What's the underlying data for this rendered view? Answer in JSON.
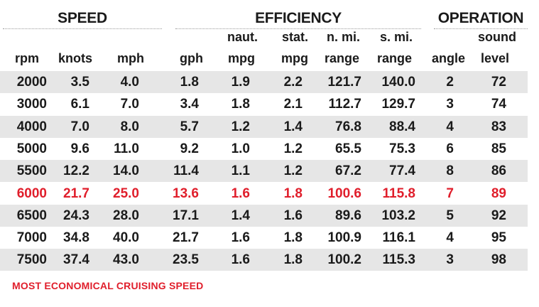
{
  "groups": {
    "speed": "SPEED",
    "efficiency": "EFFICIENCY",
    "operation": "OPERATION"
  },
  "headers": {
    "rpm": "rpm",
    "knots": "knots",
    "mph": "mph",
    "gph": "gph",
    "naut_mpg_top": "naut.",
    "naut_mpg_bottom": "mpg",
    "stat_mpg_top": "stat.",
    "stat_mpg_bottom": "mpg",
    "nmi_range_top": "n. mi.",
    "nmi_range_bottom": "range",
    "smi_range_top": "s. mi.",
    "smi_range_bottom": "range",
    "angle": "angle",
    "sound_top": "sound",
    "sound_bottom": "level"
  },
  "rows": [
    {
      "rpm": "2000",
      "knots": "3.5",
      "mph": "4.0",
      "gph": "1.8",
      "naut_mpg": "1.9",
      "stat_mpg": "2.2",
      "nmi_range": "121.7",
      "smi_range": "140.0",
      "angle": "2",
      "sound": "72"
    },
    {
      "rpm": "3000",
      "knots": "6.1",
      "mph": "7.0",
      "gph": "3.4",
      "naut_mpg": "1.8",
      "stat_mpg": "2.1",
      "nmi_range": "112.7",
      "smi_range": "129.7",
      "angle": "3",
      "sound": "74"
    },
    {
      "rpm": "4000",
      "knots": "7.0",
      "mph": "8.0",
      "gph": "5.7",
      "naut_mpg": "1.2",
      "stat_mpg": "1.4",
      "nmi_range": "76.8",
      "smi_range": "88.4",
      "angle": "4",
      "sound": "83"
    },
    {
      "rpm": "5000",
      "knots": "9.6",
      "mph": "11.0",
      "gph": "9.2",
      "naut_mpg": "1.0",
      "stat_mpg": "1.2",
      "nmi_range": "65.5",
      "smi_range": "75.3",
      "angle": "6",
      "sound": "85"
    },
    {
      "rpm": "5500",
      "knots": "12.2",
      "mph": "14.0",
      "gph": "11.4",
      "naut_mpg": "1.1",
      "stat_mpg": "1.2",
      "nmi_range": "67.2",
      "smi_range": "77.4",
      "angle": "8",
      "sound": "86"
    },
    {
      "rpm": "6000",
      "knots": "21.7",
      "mph": "25.0",
      "gph": "13.6",
      "naut_mpg": "1.6",
      "stat_mpg": "1.8",
      "nmi_range": "100.6",
      "smi_range": "115.8",
      "angle": "7",
      "sound": "89"
    },
    {
      "rpm": "6500",
      "knots": "24.3",
      "mph": "28.0",
      "gph": "17.1",
      "naut_mpg": "1.4",
      "stat_mpg": "1.6",
      "nmi_range": "89.6",
      "smi_range": "103.2",
      "angle": "5",
      "sound": "92"
    },
    {
      "rpm": "7000",
      "knots": "34.8",
      "mph": "40.0",
      "gph": "21.7",
      "naut_mpg": "1.6",
      "stat_mpg": "1.8",
      "nmi_range": "100.9",
      "smi_range": "116.1",
      "angle": "4",
      "sound": "95"
    },
    {
      "rpm": "7500",
      "knots": "37.4",
      "mph": "43.0",
      "gph": "23.5",
      "naut_mpg": "1.6",
      "stat_mpg": "1.8",
      "nmi_range": "100.2",
      "smi_range": "115.3",
      "angle": "3",
      "sound": "98"
    }
  ],
  "highlight_row": "6000",
  "highlight_color": "#e01e2b",
  "stripe_color": "#e6e6e6",
  "footnote": "MOST ECONOMICAL CRUISING SPEED"
}
